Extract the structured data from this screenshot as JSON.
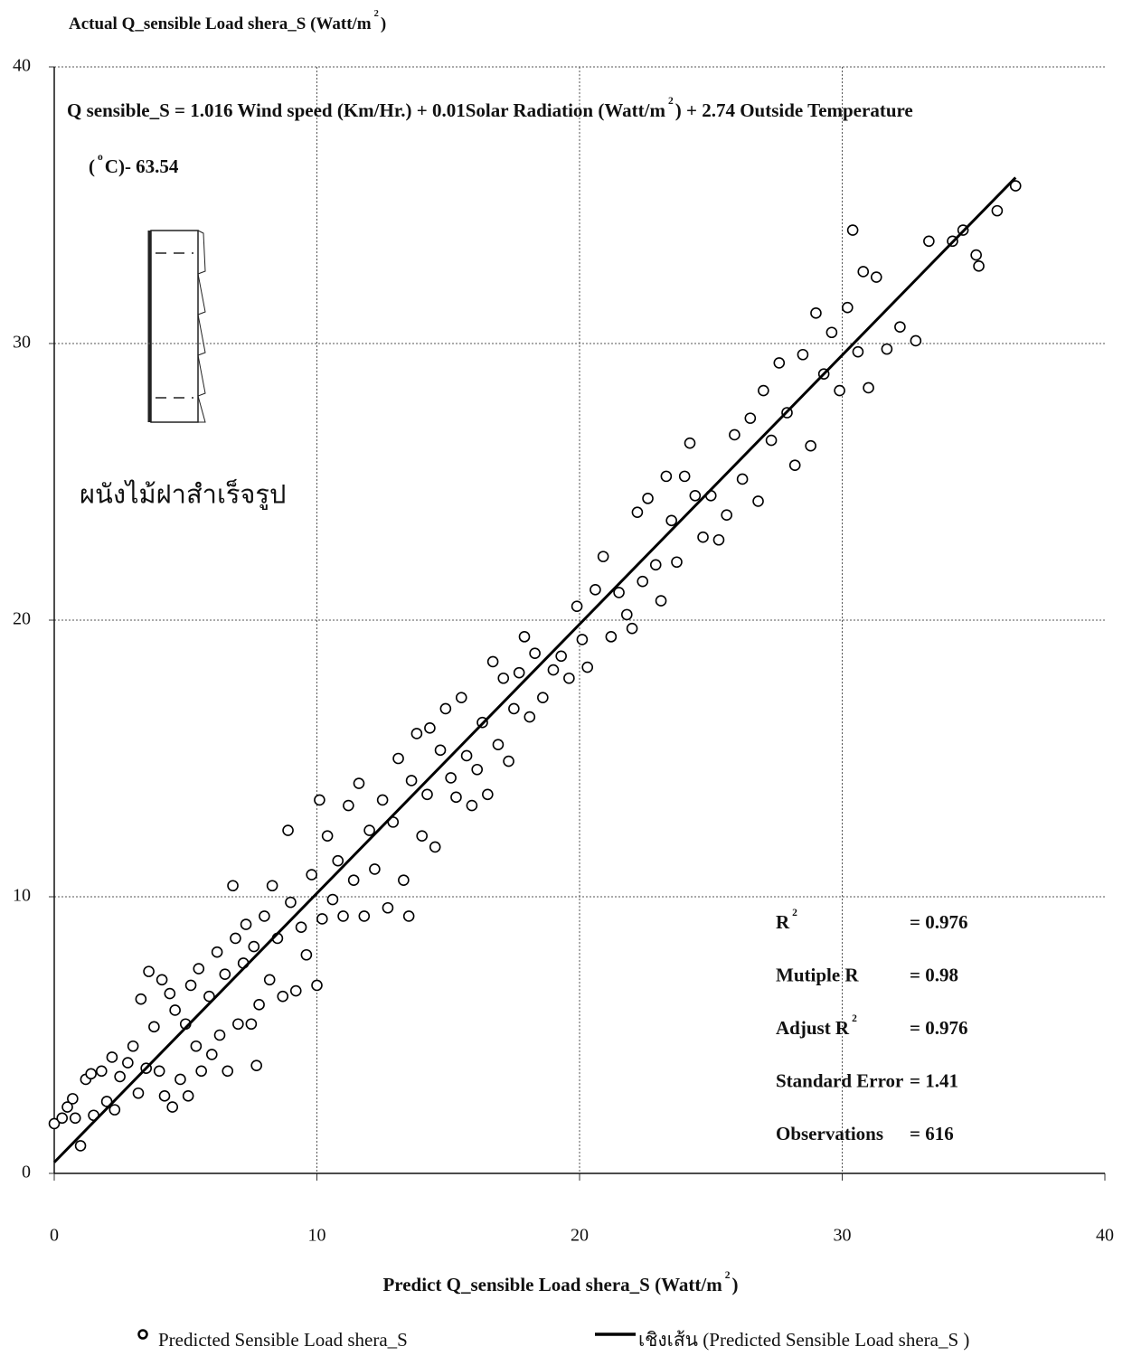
{
  "chart_data": {
    "type": "scatter",
    "y_label": {
      "text": "Actual  Q_sensible Load shera_S (Watt/m",
      "sup": "2",
      "tail": ")"
    },
    "x_label": {
      "text": "Predict Q_sensible Load shera_S (Watt/m",
      "sup": "2",
      "tail": ")"
    },
    "equation": [
      {
        "text": "Q sensible_S = 1.016 Wind speed (Km/Hr.) + 0.01Solar Radiation (Watt/m",
        "sup": "2",
        "tail": ") + 2.74 Outside Temperature"
      },
      {
        "text": "(",
        "sup": "o",
        "tail": "C)- 63.54"
      }
    ],
    "wall_label": "ผนังไม้ฝาสำเร็จรูป",
    "stats": [
      {
        "text": "R",
        "sup": "2",
        "value": "= 0.976"
      },
      {
        "text": "Mutiple R",
        "value": "= 0.98"
      },
      {
        "text": "Adjust R",
        "sup": "2",
        "value": "=  0.976"
      },
      {
        "text": "Standard Error",
        "value": "= 1.41"
      },
      {
        "text": "Observations",
        "value": "= 616"
      }
    ],
    "xlim": [
      0,
      40
    ],
    "ylim": [
      0,
      40
    ],
    "xticks": [
      0,
      10,
      20,
      30,
      40
    ],
    "yticks": [
      0,
      10,
      20,
      30,
      40
    ],
    "grid": true,
    "series": [
      {
        "name": "Predicted Sensible Load shera_S",
        "color": "#000000",
        "marker": "circle",
        "x": [
          0,
          0.3,
          0.5,
          0.7,
          0.8,
          1.0,
          1.2,
          1.4,
          1.5,
          1.8,
          2.0,
          2.2,
          2.3,
          2.5,
          2.8,
          3.0,
          3.2,
          3.3,
          3.5,
          3.6,
          3.8,
          4.0,
          4.1,
          4.2,
          4.4,
          4.5,
          4.6,
          4.8,
          5.0,
          5.1,
          5.2,
          5.4,
          5.5,
          5.6,
          5.9,
          6.0,
          6.2,
          6.3,
          6.5,
          6.6,
          6.8,
          6.9,
          7.0,
          7.2,
          7.3,
          7.5,
          7.6,
          7.7,
          7.8,
          8.0,
          8.2,
          8.3,
          8.5,
          8.7,
          8.9,
          9.0,
          9.2,
          9.4,
          9.6,
          9.8,
          10.0,
          10.1,
          10.2,
          10.4,
          10.6,
          10.8,
          11.0,
          11.2,
          11.4,
          11.6,
          11.8,
          12.0,
          12.2,
          12.5,
          12.7,
          12.9,
          13.1,
          13.3,
          13.5,
          13.6,
          13.8,
          14.0,
          14.2,
          14.3,
          14.5,
          14.7,
          14.9,
          15.1,
          15.3,
          15.5,
          15.7,
          15.9,
          16.1,
          16.3,
          16.5,
          16.7,
          16.9,
          17.1,
          17.3,
          17.5,
          17.7,
          17.9,
          18.1,
          18.3,
          18.6,
          19.0,
          19.3,
          19.6,
          19.9,
          20.1,
          20.3,
          20.6,
          20.9,
          21.2,
          21.5,
          21.8,
          22.0,
          22.2,
          22.4,
          22.6,
          22.9,
          23.1,
          23.3,
          23.5,
          23.7,
          24.0,
          24.2,
          24.4,
          24.7,
          25.0,
          25.3,
          25.6,
          25.9,
          26.2,
          26.5,
          26.8,
          27.0,
          27.3,
          27.6,
          27.9,
          28.2,
          28.5,
          28.8,
          29.0,
          29.3,
          29.6,
          29.9,
          30.2,
          30.4,
          30.6,
          30.8,
          31.0,
          31.3,
          31.7,
          32.2,
          32.8,
          33.3,
          34.2,
          34.6,
          35.1,
          35.2,
          35.9,
          36.6
        ],
        "values": [
          1.8,
          2.0,
          2.4,
          2.7,
          2.0,
          1.0,
          3.4,
          3.6,
          2.1,
          3.7,
          2.6,
          4.2,
          2.3,
          3.5,
          4.0,
          4.6,
          2.9,
          6.3,
          3.8,
          7.3,
          5.3,
          3.7,
          7.0,
          2.8,
          6.5,
          2.4,
          5.9,
          3.4,
          5.4,
          2.8,
          6.8,
          4.6,
          7.4,
          3.7,
          6.4,
          4.3,
          8.0,
          5.0,
          7.2,
          3.7,
          10.4,
          8.5,
          5.4,
          7.6,
          9.0,
          5.4,
          8.2,
          3.9,
          6.1,
          9.3,
          7.0,
          10.4,
          8.5,
          6.4,
          12.4,
          9.8,
          6.6,
          8.9,
          7.9,
          10.8,
          6.8,
          13.5,
          9.2,
          12.2,
          9.9,
          11.3,
          9.3,
          13.3,
          10.6,
          14.1,
          9.3,
          12.4,
          11.0,
          13.5,
          9.6,
          12.7,
          15.0,
          10.6,
          9.3,
          14.2,
          15.9,
          12.2,
          13.7,
          16.1,
          11.8,
          15.3,
          16.8,
          14.3,
          13.6,
          17.2,
          15.1,
          13.3,
          14.6,
          16.3,
          13.7,
          18.5,
          15.5,
          17.9,
          14.9,
          16.8,
          18.1,
          19.4,
          16.5,
          18.8,
          17.2,
          18.2,
          18.7,
          17.9,
          20.5,
          19.3,
          18.3,
          21.1,
          22.3,
          19.4,
          21.0,
          20.2,
          19.7,
          23.9,
          21.4,
          24.4,
          22.0,
          20.7,
          25.2,
          23.6,
          22.1,
          25.2,
          26.4,
          24.5,
          23.0,
          24.5,
          22.9,
          23.8,
          26.7,
          25.1,
          27.3,
          24.3,
          28.3,
          26.5,
          29.3,
          27.5,
          25.6,
          29.6,
          26.3,
          31.1,
          28.9,
          30.4,
          28.3,
          31.3,
          34.1,
          29.7,
          32.6,
          28.4,
          32.4,
          29.8,
          30.6,
          30.1,
          33.7,
          33.7,
          34.1,
          33.2,
          32.8,
          34.8,
          35.7
        ]
      },
      {
        "name": "เชิงเส้น (Predicted Sensible Load shera_S  )",
        "color": "#000000",
        "marker": "line",
        "x": [
          0,
          36.6
        ],
        "values": [
          0.4,
          36.0
        ]
      }
    ]
  }
}
